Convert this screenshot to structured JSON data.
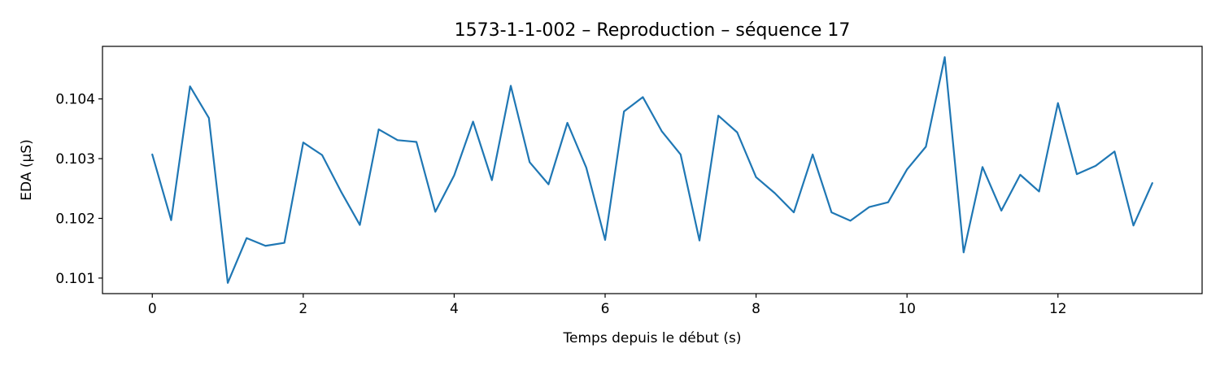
{
  "chart_data": {
    "type": "line",
    "title": "1573-1-1-002 – Reproduction – séquence 17",
    "xlabel": "Temps depuis le début (s)",
    "ylabel": "EDA (µS)",
    "xlim": [
      -0.66,
      13.91
    ],
    "ylim": [
      0.10074,
      0.10488
    ],
    "xticks": [
      0,
      2,
      4,
      6,
      8,
      10,
      12
    ],
    "xtick_labels": [
      "0",
      "2",
      "4",
      "6",
      "8",
      "10",
      "12"
    ],
    "yticks": [
      0.101,
      0.102,
      0.103,
      0.104
    ],
    "ytick_labels": [
      "0.101",
      "0.102",
      "0.103",
      "0.104"
    ],
    "grid": false,
    "series": [
      {
        "color": "#1f77b4",
        "x": [
          0,
          0.25,
          0.5,
          0.75,
          1,
          1.25,
          1.5,
          1.75,
          2,
          2.25,
          2.5,
          2.75,
          3,
          3.25,
          3.5,
          3.75,
          4,
          4.25,
          4.5,
          4.75,
          5,
          5.25,
          5.5,
          5.75,
          6,
          6.25,
          6.5,
          6.75,
          7,
          7.25,
          7.5,
          7.75,
          8,
          8.25,
          8.5,
          8.75,
          9,
          9.25,
          9.5,
          9.75,
          10,
          10.25,
          10.5,
          10.75,
          11,
          11.25,
          11.5,
          11.75,
          12,
          12.25,
          12.5,
          12.75,
          13,
          13.25
        ],
        "y": [
          0.10307,
          0.10197,
          0.10421,
          0.10368,
          0.10092,
          0.10167,
          0.10154,
          0.10159,
          0.10327,
          0.10306,
          0.10245,
          0.10189,
          0.10349,
          0.10331,
          0.10328,
          0.10211,
          0.10272,
          0.10362,
          0.10264,
          0.10422,
          0.10294,
          0.10257,
          0.1036,
          0.10285,
          0.10164,
          0.10379,
          0.10403,
          0.10346,
          0.10307,
          0.10163,
          0.10372,
          0.10344,
          0.10269,
          0.10242,
          0.1021,
          0.10307,
          0.1021,
          0.10196,
          0.10219,
          0.10227,
          0.10282,
          0.1032,
          0.1047,
          0.10143,
          0.10286,
          0.10213,
          0.10273,
          0.10245,
          0.10393,
          0.10274,
          0.10288,
          0.10312,
          0.10188,
          0.10259
        ]
      }
    ]
  }
}
